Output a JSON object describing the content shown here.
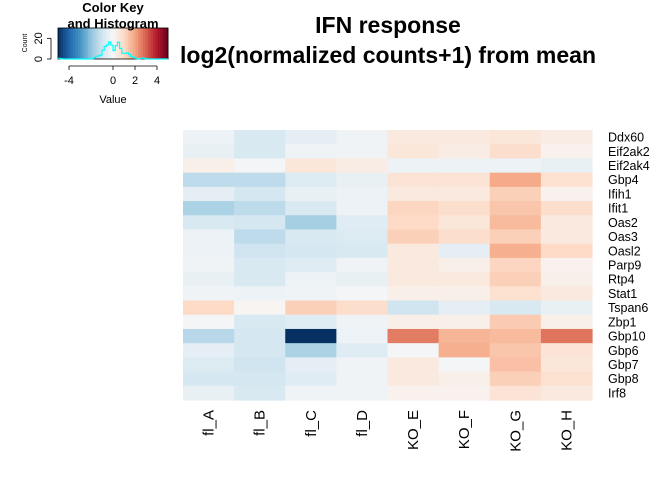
{
  "chart_data": {
    "type": "heatmap",
    "title_lines": [
      "IFN response",
      "log2(normalized counts+1) from mean"
    ],
    "columns": [
      "fl_A",
      "fl_B",
      "fl_C",
      "fl_D",
      "KO_E",
      "KO_F",
      "KO_G",
      "KO_H"
    ],
    "rows": [
      "Ddx60",
      "Eif2ak2",
      "Eif2ak4",
      "Gbp4",
      "Ifih1",
      "Ifit1",
      "Oas2",
      "Oas3",
      "Oasl2",
      "Parp9",
      "Rtp4",
      "Stat1",
      "Tspan6",
      "Zbp1",
      "Gbp10",
      "Gbp6",
      "Gbp7",
      "Gbp8",
      "Irf8"
    ],
    "values": [
      [
        -0.3,
        -0.8,
        -0.5,
        -0.2,
        0.5,
        0.5,
        0.6,
        0.4
      ],
      [
        -0.4,
        -0.8,
        -0.2,
        -0.2,
        0.6,
        0.4,
        0.9,
        0.2
      ],
      [
        0.3,
        -0.1,
        0.6,
        0.4,
        -0.3,
        -0.3,
        -0.3,
        -0.4
      ],
      [
        -1.3,
        -1.3,
        -0.7,
        -0.4,
        0.7,
        0.7,
        1.9,
        0.8
      ],
      [
        -0.5,
        -0.9,
        -0.4,
        -0.3,
        0.5,
        0.5,
        1.2,
        0.2
      ],
      [
        -1.6,
        -1.3,
        -0.8,
        -0.3,
        1.1,
        0.9,
        1.4,
        0.9
      ],
      [
        -0.8,
        -0.9,
        -1.7,
        -0.6,
        1.0,
        0.6,
        1.6,
        0.5
      ],
      [
        -0.3,
        -1.3,
        -0.8,
        -0.7,
        1.2,
        0.9,
        1.2,
        0.5
      ],
      [
        -0.3,
        -1.0,
        -0.9,
        -0.8,
        0.5,
        -0.5,
        1.8,
        1.0
      ],
      [
        -0.2,
        -0.8,
        -0.6,
        -0.2,
        0.5,
        0.3,
        1.1,
        0.2
      ],
      [
        -0.4,
        -0.8,
        -0.3,
        -0.4,
        0.5,
        0.5,
        1.2,
        0.3
      ],
      [
        -0.2,
        -0.3,
        -0.2,
        -0.1,
        0.3,
        0.3,
        0.8,
        0.5
      ],
      [
        1.0,
        0.1,
        1.2,
        0.9,
        -1.0,
        -0.5,
        -0.8,
        -0.4
      ],
      [
        -0.1,
        -0.8,
        -0.6,
        -0.2,
        0.3,
        0.3,
        1.3,
        0.3
      ],
      [
        -1.4,
        -0.9,
        -5.0,
        -0.3,
        2.6,
        1.7,
        1.6,
        2.7
      ],
      [
        -0.5,
        -0.9,
        -1.6,
        -0.6,
        -0.1,
        1.8,
        1.4,
        0.7
      ],
      [
        -0.7,
        -1.0,
        -0.5,
        -0.2,
        0.5,
        -0.1,
        1.5,
        0.6
      ],
      [
        -0.9,
        -0.9,
        -0.6,
        -0.2,
        0.5,
        0.3,
        1.2,
        0.8
      ],
      [
        -0.4,
        -0.8,
        -0.2,
        -0.2,
        0.2,
        0.2,
        0.7,
        0.5
      ]
    ],
    "color_scale": {
      "min": -5,
      "max": 5,
      "low": "#053061",
      "mid": "#f7f7f7",
      "high": "#67001f"
    },
    "color_key": {
      "title_lines": [
        "Color Key",
        "and Histogram"
      ],
      "x_label": "Value",
      "y_label": "Count",
      "x_ticks": [
        -4,
        0,
        2,
        4
      ],
      "y_ticks": [
        0,
        20
      ],
      "histogram_color": "#00ffff"
    }
  }
}
